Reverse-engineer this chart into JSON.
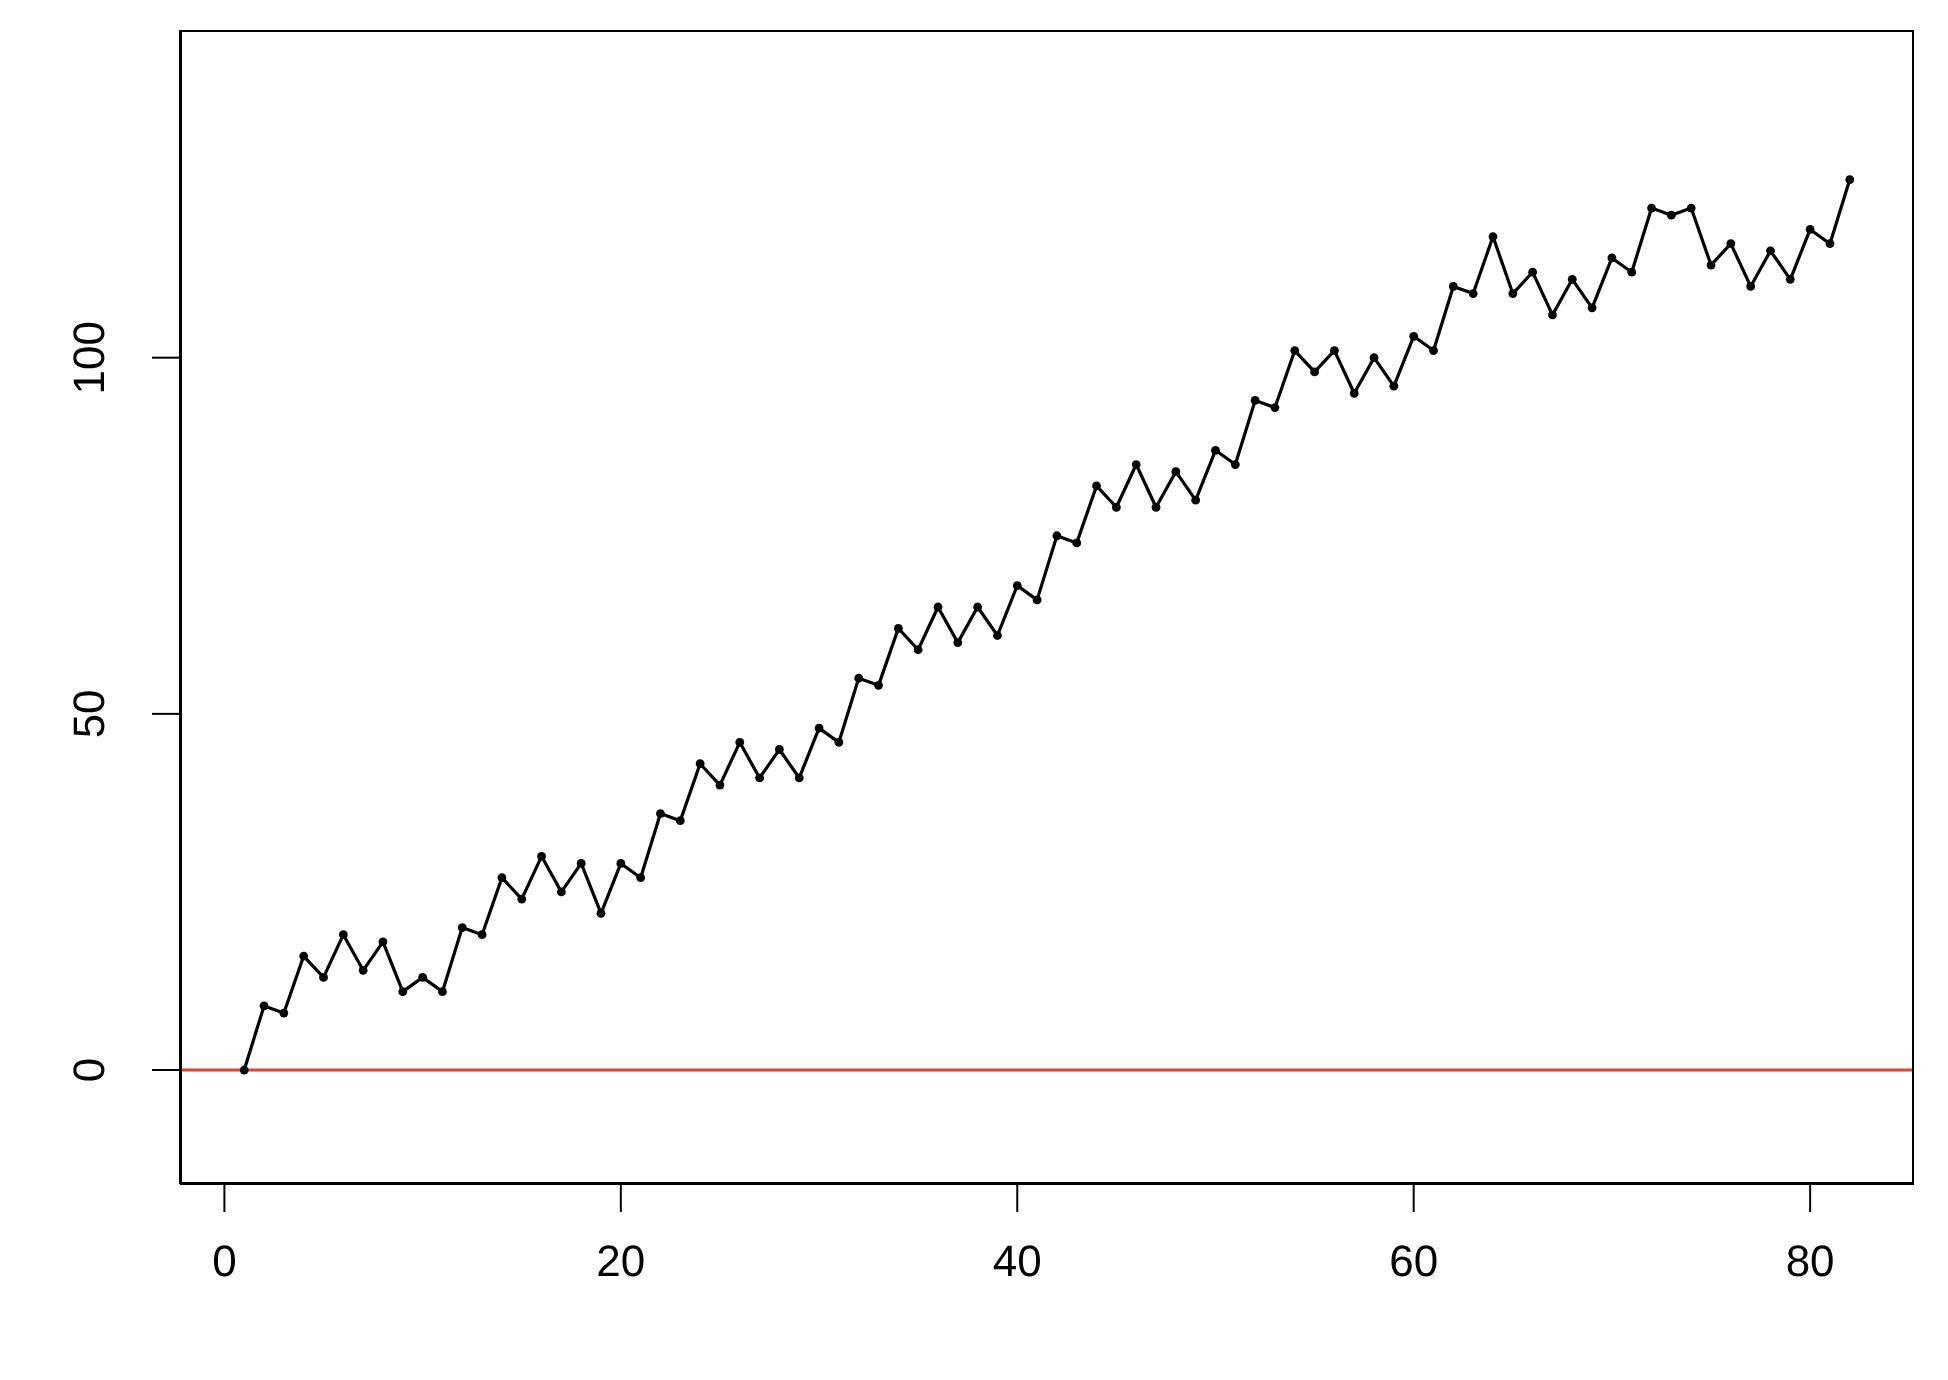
{
  "chart_data": {
    "type": "line",
    "x": [
      1,
      2,
      3,
      4,
      5,
      6,
      7,
      8,
      9,
      10,
      11,
      12,
      13,
      14,
      15,
      16,
      17,
      18,
      19,
      20,
      21,
      22,
      23,
      24,
      25,
      26,
      27,
      28,
      29,
      30,
      31,
      32,
      33,
      34,
      35,
      36,
      37,
      38,
      39,
      40,
      41,
      42,
      43,
      44,
      45,
      46,
      47,
      48,
      49,
      50,
      51,
      52,
      53,
      54,
      55,
      56,
      57,
      58,
      59,
      60,
      61,
      62,
      63,
      64,
      65,
      66,
      67,
      68,
      69,
      70,
      71,
      72,
      73,
      74,
      75,
      76,
      77,
      78,
      79,
      80,
      81,
      82
    ],
    "series": [
      {
        "color": "#000000",
        "values": [
          0,
          9,
          8,
          16,
          13,
          19,
          14,
          18,
          11,
          13,
          11,
          20,
          19,
          27,
          24,
          30,
          25,
          29,
          22,
          29,
          27,
          36,
          35,
          43,
          40,
          46,
          41,
          45,
          41,
          48,
          46,
          55,
          54,
          62,
          59,
          65,
          60,
          65,
          61,
          68,
          66,
          75,
          74,
          82,
          79,
          85,
          79,
          84,
          80,
          87,
          85,
          94,
          93,
          101,
          98,
          101,
          95,
          100,
          96,
          103,
          101,
          110,
          109,
          117,
          109,
          112,
          106,
          111,
          107,
          114,
          112,
          121,
          120,
          121,
          113,
          116,
          110,
          115,
          111,
          118,
          116,
          125
        ]
      }
    ],
    "xlim": [
      -2.24,
      85.24
    ],
    "xticks": [
      0,
      20,
      40,
      60,
      80
    ],
    "ylim": [
      -16,
      146
    ],
    "yticks": [
      0,
      50,
      100
    ],
    "ref_lines": [
      {
        "axis": "y",
        "value": 0,
        "color": "#e8412f"
      }
    ],
    "marker": "circle",
    "grid": false,
    "legend": false
  }
}
